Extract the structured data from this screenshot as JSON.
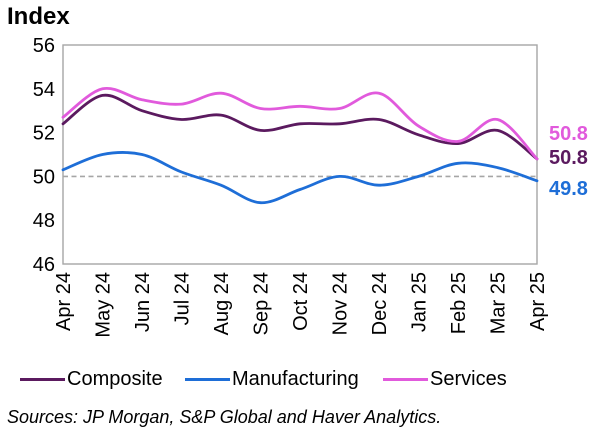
{
  "sources": "Sources: JP Morgan, S&P Global and Haver Analytics.",
  "chart_data": {
    "type": "line",
    "title": "Index",
    "categories": [
      "Apr 24",
      "May 24",
      "Jun 24",
      "Jul 24",
      "Aug 24",
      "Sep 24",
      "Oct 24",
      "Nov 24",
      "Dec 24",
      "Jan 25",
      "Feb 25",
      "Mar 25",
      "Apr 25"
    ],
    "series": [
      {
        "name": "Composite",
        "color": "#5B1A5F",
        "end_label": "50.8",
        "values": [
          52.4,
          53.7,
          53.0,
          52.6,
          52.8,
          52.1,
          52.4,
          52.4,
          52.6,
          51.9,
          51.5,
          52.1,
          50.8
        ]
      },
      {
        "name": "Manufacturing",
        "color": "#1E6ED7",
        "end_label": "49.8",
        "values": [
          50.3,
          51.0,
          51.0,
          50.2,
          49.6,
          48.8,
          49.4,
          50.0,
          49.6,
          50.0,
          50.6,
          50.4,
          49.8
        ]
      },
      {
        "name": "Services",
        "color": "#E15ADC",
        "end_label": "50.8",
        "values": [
          52.7,
          54.0,
          53.5,
          53.3,
          53.8,
          53.1,
          53.2,
          53.1,
          53.8,
          52.3,
          51.6,
          52.6,
          50.8
        ]
      }
    ],
    "xlabel": "",
    "ylabel": "Index",
    "ylim": [
      46,
      56
    ],
    "yticks": [
      56,
      54,
      52,
      50,
      48,
      46
    ],
    "reference_line": 50,
    "reference_line_color": "#A6A6A6",
    "frame_color": "#A6A6A6",
    "grid": false,
    "smooth": true,
    "legend_position": "bottom"
  }
}
